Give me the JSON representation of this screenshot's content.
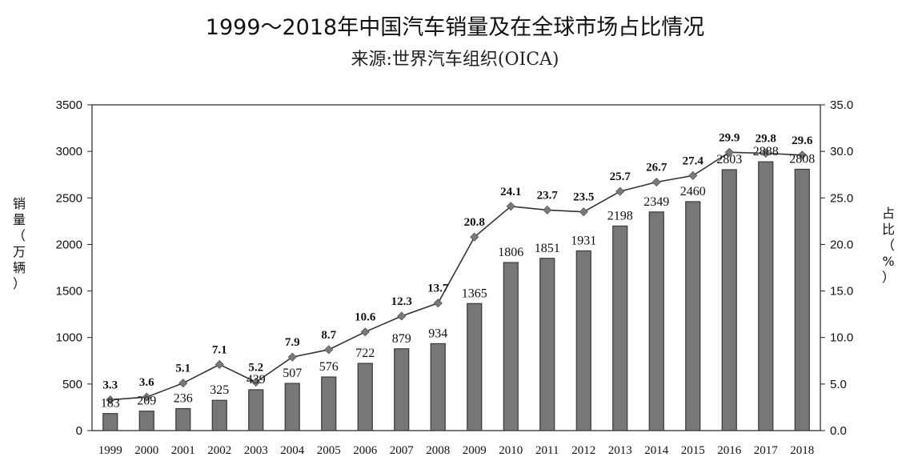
{
  "chart_data": {
    "type": "bar",
    "title": "1999～2018年中国汽车销量及在全球市场占比情况",
    "subtitle": "来源:世界汽车组织(OICA)",
    "ylabel": "销量（万辆）",
    "y2label": "占比（%）",
    "categories": [
      "1999",
      "2000",
      "2001",
      "2002",
      "2003",
      "2004",
      "2005",
      "2006",
      "2007",
      "2008",
      "2009",
      "2010",
      "2011",
      "2012",
      "2013",
      "2014",
      "2015",
      "2016",
      "2017",
      "2018"
    ],
    "ylim": [
      0,
      3500
    ],
    "y2lim": [
      0,
      35
    ],
    "yticks": [
      "0",
      "500",
      "1000",
      "1500",
      "2000",
      "2500",
      "3000",
      "3500"
    ],
    "y2ticks": [
      "0.0",
      "5.0",
      "10.0",
      "15.0",
      "20.0",
      "25.0",
      "30.0",
      "35.0"
    ],
    "series": [
      {
        "type": "bar",
        "axis": "left",
        "values": [
          183,
          209,
          236,
          325,
          439,
          507,
          576,
          722,
          879,
          934,
          1365,
          1806,
          1851,
          1931,
          2198,
          2349,
          2460,
          2803,
          2888,
          2808
        ]
      },
      {
        "type": "line",
        "axis": "right",
        "values": [
          3.3,
          3.6,
          5.1,
          7.1,
          5.2,
          7.9,
          8.7,
          10.6,
          12.3,
          13.7,
          20.8,
          24.1,
          23.7,
          23.5,
          25.7,
          26.7,
          27.4,
          29.9,
          29.8,
          29.6
        ]
      }
    ],
    "colors": {
      "bar": "#777777",
      "bar_edge": "#3a3a3a",
      "line": "#333333",
      "marker": "#7a7a7a"
    },
    "grid": false,
    "legend": "none"
  }
}
